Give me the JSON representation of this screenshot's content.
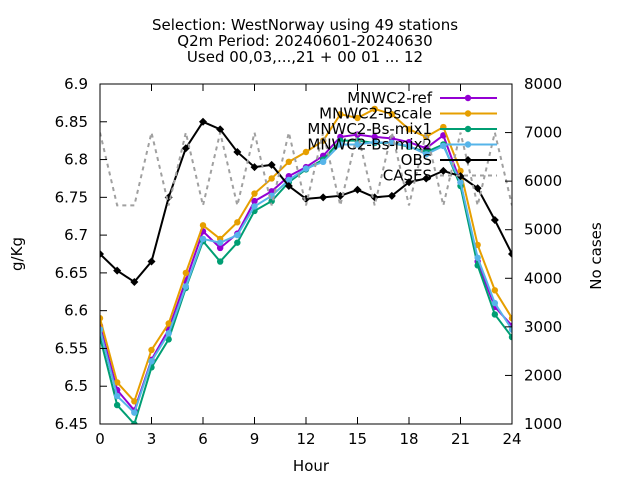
{
  "chart_data": {
    "type": "line",
    "title": [
      "Selection: WestNorway using     49 stations",
      "Q2m   Period: 20240601-20240630",
      "Used 00,03,...,21 + 00 01 ... 12"
    ],
    "xlabel": "Hour",
    "ylabel": "g/Kg",
    "y2label": "No cases",
    "xlim": [
      0,
      24
    ],
    "ylim": [
      6.45,
      6.9
    ],
    "y2lim": [
      1000,
      8000
    ],
    "xticks": [
      0,
      3,
      6,
      9,
      12,
      15,
      18,
      21,
      24
    ],
    "yticks": [
      6.45,
      6.5,
      6.55,
      6.6,
      6.65,
      6.7,
      6.75,
      6.8,
      6.85,
      6.9
    ],
    "yticklabels": [
      "6.45",
      "6.5",
      "6.55",
      "6.6",
      "6.65",
      "6.7",
      "6.75",
      "6.8",
      "6.85",
      "6.9"
    ],
    "y2ticks": [
      1000,
      2000,
      3000,
      4000,
      5000,
      6000,
      7000,
      8000
    ],
    "grid": false,
    "legend_position": "top-right",
    "x": [
      0,
      1,
      2,
      3,
      4,
      5,
      6,
      7,
      8,
      9,
      10,
      11,
      12,
      13,
      14,
      15,
      16,
      17,
      18,
      19,
      20,
      21,
      22,
      23,
      24
    ],
    "series": [
      {
        "name": "MNWC2-ref",
        "color": "#9400d3",
        "marker": "circle",
        "axis": "y",
        "values": [
          6.58,
          6.495,
          6.468,
          6.535,
          6.575,
          6.64,
          6.705,
          6.683,
          6.702,
          6.745,
          6.758,
          6.778,
          6.79,
          6.805,
          6.83,
          6.833,
          6.83,
          6.828,
          6.823,
          6.815,
          6.832,
          6.77,
          6.665,
          6.605,
          6.58
        ]
      },
      {
        "name": "MNWC2-Bscale",
        "color": "#e69f00",
        "marker": "circle",
        "axis": "y",
        "values": [
          6.59,
          6.505,
          6.48,
          6.548,
          6.583,
          6.65,
          6.713,
          6.695,
          6.717,
          6.755,
          6.775,
          6.797,
          6.81,
          6.825,
          6.86,
          6.855,
          6.867,
          6.86,
          6.84,
          6.83,
          6.843,
          6.785,
          6.687,
          6.627,
          6.59
        ]
      },
      {
        "name": "MNWC2-Bs-mix1",
        "color": "#009e73",
        "marker": "circle",
        "axis": "y",
        "values": [
          6.565,
          6.475,
          6.45,
          6.525,
          6.562,
          6.63,
          6.692,
          6.665,
          6.69,
          6.732,
          6.745,
          6.77,
          6.787,
          6.8,
          6.825,
          6.825,
          6.822,
          6.822,
          6.817,
          6.81,
          6.82,
          6.765,
          6.66,
          6.595,
          6.565
        ]
      },
      {
        "name": "MNWC2-Bs-mix2",
        "color": "#56b4e9",
        "marker": "circle",
        "axis": "y",
        "values": [
          6.575,
          6.487,
          6.465,
          6.533,
          6.57,
          6.632,
          6.695,
          6.69,
          6.7,
          6.738,
          6.752,
          6.773,
          6.788,
          6.797,
          6.82,
          6.82,
          6.823,
          6.822,
          6.818,
          6.807,
          6.818,
          6.77,
          6.67,
          6.61,
          6.575
        ]
      },
      {
        "name": "OBS",
        "color": "#000000",
        "marker": "diamond",
        "axis": "y",
        "values": [
          6.675,
          6.653,
          6.638,
          6.665,
          6.75,
          6.815,
          6.85,
          6.84,
          6.81,
          6.79,
          6.793,
          6.765,
          6.748,
          6.75,
          6.752,
          6.76,
          6.75,
          6.752,
          6.77,
          6.775,
          6.785,
          6.778,
          6.762,
          6.72,
          6.675
        ]
      },
      {
        "name": "CASES",
        "color": "#a0a0a0",
        "marker": "none",
        "dash": true,
        "axis": "y2",
        "values": [
          7000,
          5500,
          5500,
          7000,
          5500,
          7000,
          5500,
          7000,
          5500,
          7000,
          5500,
          7000,
          5500,
          7000,
          5500,
          7000,
          5500,
          7000,
          5500,
          7000,
          5500,
          7000,
          5500,
          7000,
          5500
        ]
      }
    ]
  }
}
